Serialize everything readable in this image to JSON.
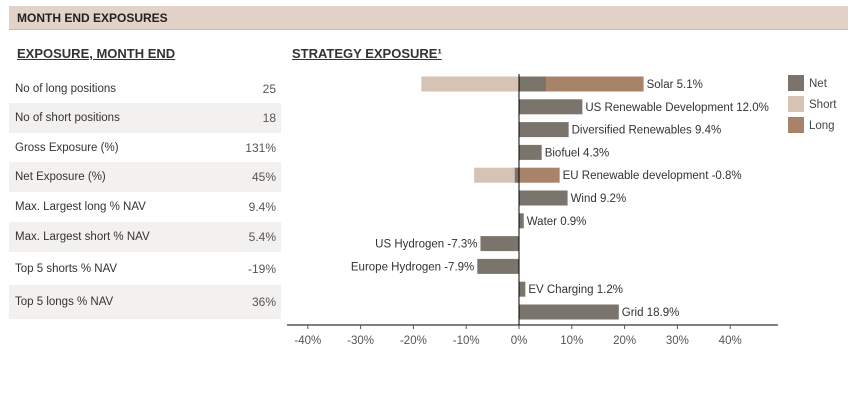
{
  "header": {
    "title": "MONTH END EXPOSURES"
  },
  "exposure": {
    "title": "EXPOSURE, MONTH END",
    "rows": [
      {
        "label": "No of long positions",
        "value": "25"
      },
      {
        "label": "No of short positions",
        "value": "18"
      },
      {
        "label": "Gross Exposure (%)",
        "value": "131%"
      },
      {
        "label": "Net Exposure (%)",
        "value": "45%"
      },
      {
        "label": "Max. Largest long % NAV",
        "value": "9.4%"
      },
      {
        "label": "Max. Largest short % NAV",
        "value": "5.4%"
      },
      {
        "label": "Top 5 shorts % NAV",
        "value": "-19%"
      },
      {
        "label": "Top 5 longs % NAV",
        "value": "36%"
      }
    ]
  },
  "chart_data": {
    "type": "bar",
    "orientation": "horizontal",
    "title": "STRATEGY EXPOSURE¹",
    "categories": [
      "Solar",
      "US Renewable Development",
      "Diversified Renewables",
      "Biofuel",
      "EU Renewable development",
      "Wind",
      "Water",
      "US Hydrogen",
      "Europe Hydrogen",
      "EV Charging",
      "Grid"
    ],
    "series": [
      {
        "name": "Short",
        "color": "#d7c3b4",
        "values": [
          -18.5,
          0,
          0,
          0,
          -8.5,
          0,
          0,
          0,
          0,
          0,
          0
        ]
      },
      {
        "name": "Long",
        "color": "#a8836a",
        "values": [
          23.6,
          0,
          0,
          0,
          7.7,
          0,
          0,
          0,
          0,
          0,
          0
        ]
      },
      {
        "name": "Net",
        "color": "#7a746d",
        "values": [
          5.1,
          12.0,
          9.4,
          4.3,
          -0.8,
          9.2,
          0.9,
          -7.3,
          -7.9,
          1.2,
          18.9
        ]
      }
    ],
    "data_labels": [
      "5.1%",
      "12.0%",
      "9.4%",
      "4.3%",
      "-0.8%",
      "9.2%",
      "0.9%",
      "-7.3%",
      "-7.9%",
      "1.2%",
      "18.9%"
    ],
    "xlim": [
      -45,
      49
    ],
    "xticks": [
      -40,
      -30,
      -20,
      -10,
      0,
      10,
      20,
      30,
      40
    ],
    "xtick_labels": [
      "-40%",
      "-30%",
      "-20%",
      "-10%",
      "0%",
      "10%",
      "20%",
      "30%",
      "40%"
    ],
    "legend": {
      "position": "right",
      "entries": [
        "Net",
        "Short",
        "Long"
      ]
    },
    "grid": false
  }
}
